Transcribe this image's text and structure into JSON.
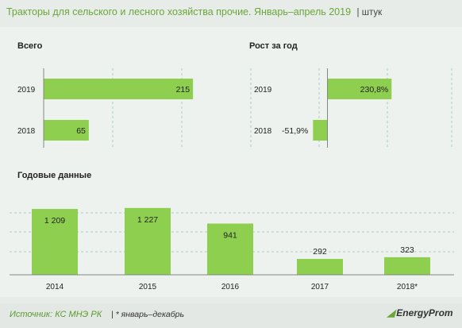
{
  "header": {
    "title": "Тракторы для сельского и лесного хозяйства прочие. Январь–апрель 2019",
    "unit": "| штук"
  },
  "sections": {
    "total": "Всего",
    "growth": "Рост за год",
    "annual": "Годовые данные"
  },
  "footer": {
    "source": "Источник: КС МНЭ РК",
    "note": "| * январь–декабрь",
    "logo": "EnergyProm"
  },
  "colors": {
    "bar": "#8fcf4f",
    "grid": "#a8cfc8",
    "title": "#6aa63a"
  },
  "chart_data": [
    {
      "id": "total",
      "type": "bar",
      "orientation": "horizontal",
      "categories": [
        "2019",
        "2018"
      ],
      "values": [
        215,
        65
      ],
      "labels": [
        "215",
        "65"
      ],
      "xlim": [
        0,
        400
      ]
    },
    {
      "id": "growth",
      "type": "bar",
      "orientation": "horizontal",
      "categories": [
        "2019",
        "2018"
      ],
      "values": [
        230.8,
        -51.9
      ],
      "labels": [
        "230,8%",
        "-51,9%"
      ],
      "xlim": [
        -150,
        450
      ]
    },
    {
      "id": "annual",
      "type": "bar",
      "orientation": "vertical",
      "categories": [
        "2014",
        "2015",
        "2016",
        "2017",
        "2018*"
      ],
      "values": [
        1209,
        1227,
        941,
        292,
        323
      ],
      "labels": [
        "1 209",
        "1 227",
        "941",
        "292",
        "323"
      ],
      "ylim": [
        0,
        1400
      ]
    }
  ]
}
